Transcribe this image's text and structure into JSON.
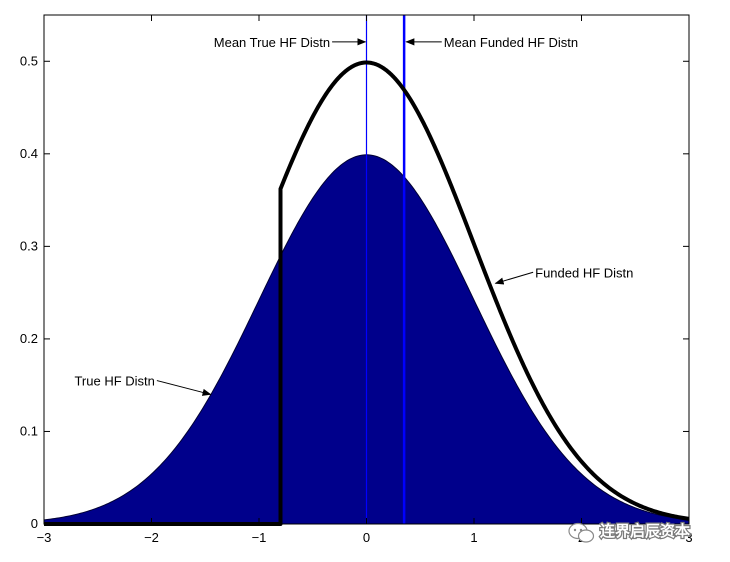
{
  "chart_data": {
    "type": "area",
    "xlim": [
      -3,
      3
    ],
    "ylim": [
      0,
      0.55
    ],
    "x_ticks": [
      -3,
      -2,
      -1,
      0,
      1,
      2,
      3
    ],
    "x_tick_labels": [
      "−3",
      "−2",
      "−1",
      "0",
      "1",
      "2",
      "3"
    ],
    "y_ticks": [
      0,
      0.1,
      0.2,
      0.3,
      0.4,
      0.5
    ],
    "y_tick_labels": [
      "0",
      "0.1",
      "0.2",
      "0.3",
      "0.4",
      "0.5"
    ],
    "grid": false,
    "series": [
      {
        "kind": "filled-density",
        "description_label": "True HF Distn",
        "distribution": "normal",
        "mean": 0,
        "sd": 1,
        "peak": 0.4,
        "color": "#00008b"
      },
      {
        "kind": "truncated-density-line",
        "description_label": "Funded HF Distn",
        "distribution": "normal",
        "mean": 0,
        "sd": 1,
        "scale": 1.25,
        "truncation_x": -0.8,
        "peak": 0.5,
        "color": "#000000"
      }
    ],
    "vlines": [
      {
        "x": 0,
        "label": "Mean True HF Distn",
        "color": "#0000ff",
        "width": "thin"
      },
      {
        "x": 0.35,
        "label": "Mean Funded HF Distn",
        "color": "#0000ff",
        "width": "thick"
      }
    ],
    "annotations": [
      {
        "text": "Mean True HF Distn",
        "anchor_x": -0.32,
        "anchor_y": 0.521,
        "target_x": -0.01,
        "target_y": 0.521
      },
      {
        "text": "Mean Funded HF Distn",
        "anchor_x": 0.7,
        "anchor_y": 0.521,
        "target_x": 0.37,
        "target_y": 0.521
      },
      {
        "text": "Funded HF Distn",
        "anchor_x": 1.55,
        "anchor_y": 0.272,
        "target_x": 1.2,
        "target_y": 0.26
      },
      {
        "text": "True HF Distn",
        "anchor_x": -1.95,
        "anchor_y": 0.155,
        "target_x": -1.45,
        "target_y": 0.14
      }
    ]
  },
  "watermark": {
    "text": "连界启辰资本",
    "icon": "wechat-icon"
  }
}
